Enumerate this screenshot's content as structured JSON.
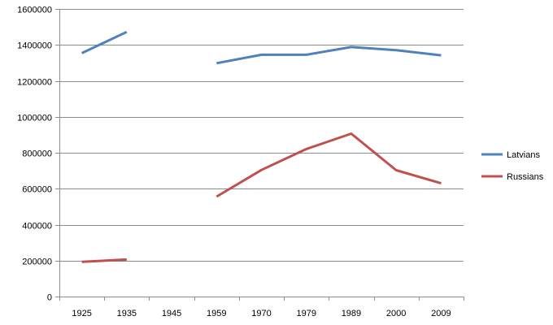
{
  "chart_data": {
    "type": "line",
    "title": "",
    "xlabel": "",
    "ylabel": "",
    "categories": [
      "1925",
      "1935",
      "1945",
      "1959",
      "1970",
      "1979",
      "1989",
      "2000",
      "2009"
    ],
    "ylim": [
      0,
      1600000
    ],
    "y_ticks": [
      "0",
      "200000",
      "400000",
      "600000",
      "800000",
      "1000000",
      "1200000",
      "1400000",
      "1600000"
    ],
    "grid": "horizontal",
    "legend_position": "right",
    "series": [
      {
        "name": "Latvians",
        "color": "#4F81BD",
        "values": [
          1354000,
          1472000,
          null,
          1298000,
          1345000,
          1345000,
          1388000,
          1371000,
          1342000
        ]
      },
      {
        "name": "Russians",
        "color": "#C0504D",
        "values": [
          193000,
          206000,
          null,
          556000,
          704000,
          821000,
          906000,
          703000,
          630000
        ]
      }
    ]
  }
}
